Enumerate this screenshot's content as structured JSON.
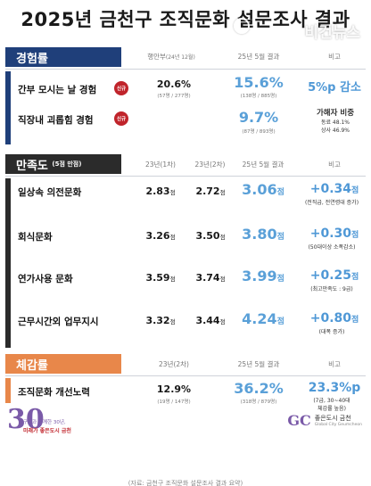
{
  "title": "2025년 금천구 조직문화 설문조사 결과",
  "watermark": "비건뉴스",
  "colors": {
    "navy": "#1f3f7a",
    "dark": "#2b2b2b",
    "orange": "#e8874a",
    "value_blue": "#5aa0d8"
  },
  "section1": {
    "label": "경험률",
    "col1": "행안부",
    "col1_sub": "(24년 12월)",
    "col2": "25년 5월 결과",
    "col3": "비고",
    "rows": [
      {
        "label": "간부 모시는 날 경험",
        "badge": "신규",
        "base": "20.6%",
        "base_sub": "(57명 / 277명)",
        "result": "15.6%",
        "result_sub": "(138명 / 885명)",
        "note": "5%p 감소"
      },
      {
        "label": "직장내 괴롭힘 경험",
        "badge": "신규",
        "base": "",
        "base_sub": "",
        "result": "9.7%",
        "result_sub": "(87명 / 893명)",
        "note_title": "가해자 비중",
        "note_line1": "동료 48.1%",
        "note_line2": "상사 46.9%"
      }
    ]
  },
  "section2": {
    "label": "만족도",
    "label_sub": "(5점 만점)",
    "col1": "23년(1차)",
    "col2": "23년(2차)",
    "col3": "25년 5월 결과",
    "col4": "비고",
    "unit": "점",
    "rows": [
      {
        "label": "일상속 의전문화",
        "v1": "2.83",
        "v2": "2.72",
        "result": "3.06",
        "delta": "+0.34",
        "note": "(전직급, 전연령대 증가)"
      },
      {
        "label": "회식문화",
        "v1": "3.26",
        "v2": "3.50",
        "result": "3.80",
        "delta": "+0.30",
        "note": "(50대이상 소폭감소)"
      },
      {
        "label": "연가사용 문화",
        "v1": "3.59",
        "v2": "3.74",
        "result": "3.99",
        "delta": "+0.25",
        "note": "(최고만족도 : 9급)"
      },
      {
        "label": "근무시간외 업무지시",
        "v1": "3.32",
        "v2": "3.44",
        "result": "4.24",
        "delta": "+0.80",
        "note": "(대폭 증가)"
      }
    ]
  },
  "section3": {
    "label": "체감률",
    "col1": "23년(2차)",
    "col2": "25년 5월 결과",
    "col3": "비고",
    "row": {
      "label": "조직문화 개선노력",
      "base": "12.9%",
      "base_sub": "(19명 / 147명)",
      "result": "36.2%",
      "result_sub": "(318명 / 879명)",
      "delta": "23.3%p",
      "note_line1": "(7급, 30~40대",
      "note_line2": "체감률 높음)"
    }
  },
  "footer": {
    "left_num": "30",
    "left_line1": "구민과 함께한 30년,",
    "left_line2": "미래가 좋은도시 금천",
    "right_mark": "GC",
    "right_name": "좋은도시 금천",
    "right_sub": "Global City Geumcheon"
  },
  "caption": "(자료: 금천구 조직문화 설문조사 결과 요약)"
}
